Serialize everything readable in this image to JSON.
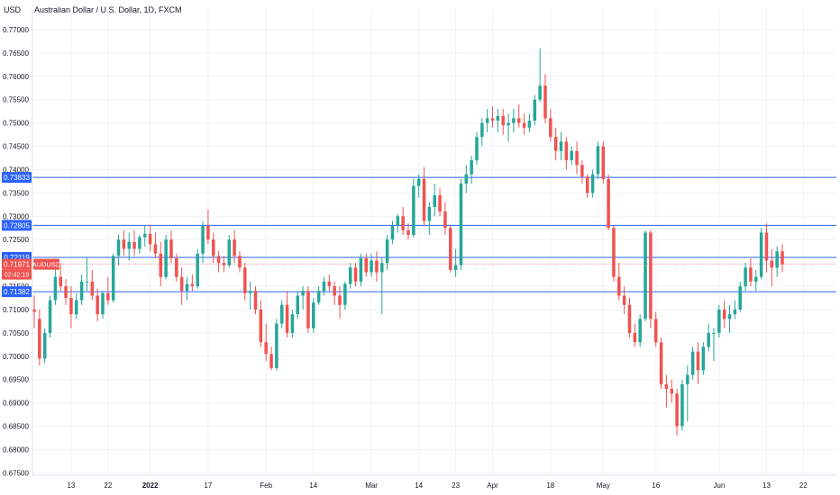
{
  "header": {
    "currency": "USD",
    "title": "Australian Dollar / U.S. Dollar, 1D, FXCM"
  },
  "colors": {
    "up": "#26a69a",
    "down": "#ef5350",
    "hline": "#2962ff",
    "price_line": "#ef5350",
    "grid": "#f0f3fa"
  },
  "chart_data": {
    "type": "candlestick",
    "symbol": "AUDUSD",
    "y_ticks": [
      "0.67500",
      "0.68000",
      "0.68500",
      "0.69000",
      "0.69500",
      "0.70000",
      "0.70500",
      "0.71000",
      "0.71500",
      "0.72000",
      "0.72500",
      "0.73000",
      "0.73500",
      "0.74000",
      "0.74500",
      "0.75000",
      "0.75500",
      "0.76000",
      "0.76500",
      "0.77000"
    ],
    "ylim": [
      0.6745,
      0.7725
    ],
    "x_ticks": [
      {
        "label": "13",
        "i": 7
      },
      {
        "label": "22",
        "i": 14
      },
      {
        "label": "2022",
        "i": 22,
        "bold": true
      },
      {
        "label": "17",
        "i": 33
      },
      {
        "label": "Feb",
        "i": 44
      },
      {
        "label": "14",
        "i": 53
      },
      {
        "label": "Mar",
        "i": 64
      },
      {
        "label": "14",
        "i": 73
      },
      {
        "label": "23",
        "i": 80
      },
      {
        "label": "Apr",
        "i": 87
      },
      {
        "label": "18",
        "i": 98
      },
      {
        "label": "May",
        "i": 108
      },
      {
        "label": "16",
        "i": 118
      },
      {
        "label": "Jun",
        "i": 130
      },
      {
        "label": "13",
        "i": 139
      },
      {
        "label": "22",
        "i": 146
      }
    ],
    "horizontal_lines": [
      {
        "value": 0.73833,
        "label": "0.73833"
      },
      {
        "value": 0.72805,
        "label": "0.72805"
      },
      {
        "value": 0.72119,
        "label": "0.72119"
      },
      {
        "value": 0.71382,
        "label": "0.71382"
      }
    ],
    "last_price": {
      "value": 0.71971,
      "label": "0.71971",
      "symbol": "AUDUSD",
      "countdown": "02:42:19"
    },
    "candles": [
      [
        0.71,
        0.713,
        0.706,
        0.7095
      ],
      [
        0.708,
        0.71,
        0.698,
        0.6995
      ],
      [
        0.6995,
        0.706,
        0.6985,
        0.705
      ],
      [
        0.705,
        0.713,
        0.704,
        0.712
      ],
      [
        0.712,
        0.7195,
        0.711,
        0.717
      ],
      [
        0.717,
        0.72,
        0.714,
        0.715
      ],
      [
        0.715,
        0.7165,
        0.711,
        0.7125
      ],
      [
        0.7125,
        0.715,
        0.706,
        0.709
      ],
      [
        0.709,
        0.7135,
        0.708,
        0.712
      ],
      [
        0.712,
        0.7175,
        0.711,
        0.716
      ],
      [
        0.716,
        0.721,
        0.714,
        0.716
      ],
      [
        0.716,
        0.7185,
        0.712,
        0.713
      ],
      [
        0.713,
        0.7145,
        0.7075,
        0.709
      ],
      [
        0.709,
        0.714,
        0.708,
        0.7135
      ],
      [
        0.7135,
        0.717,
        0.711,
        0.712
      ],
      [
        0.712,
        0.722,
        0.7115,
        0.7215
      ],
      [
        0.7215,
        0.726,
        0.7195,
        0.725
      ],
      [
        0.725,
        0.727,
        0.7215,
        0.723
      ],
      [
        0.723,
        0.7265,
        0.7205,
        0.7245
      ],
      [
        0.7245,
        0.727,
        0.7215,
        0.723
      ],
      [
        0.723,
        0.726,
        0.722,
        0.7255
      ],
      [
        0.7255,
        0.728,
        0.7235,
        0.7262
      ],
      [
        0.7262,
        0.7282,
        0.7225,
        0.724
      ],
      [
        0.724,
        0.7265,
        0.721,
        0.722
      ],
      [
        0.722,
        0.7245,
        0.715,
        0.717
      ],
      [
        0.717,
        0.726,
        0.7165,
        0.725
      ],
      [
        0.725,
        0.727,
        0.72,
        0.721
      ],
      [
        0.721,
        0.722,
        0.716,
        0.717
      ],
      [
        0.717,
        0.719,
        0.711,
        0.714
      ],
      [
        0.714,
        0.717,
        0.712,
        0.7155
      ],
      [
        0.7155,
        0.7175,
        0.714,
        0.715
      ],
      [
        0.715,
        0.723,
        0.7145,
        0.722
      ],
      [
        0.722,
        0.729,
        0.72,
        0.728
      ],
      [
        0.728,
        0.7315,
        0.724,
        0.725
      ],
      [
        0.725,
        0.7265,
        0.72,
        0.7215
      ],
      [
        0.7215,
        0.7225,
        0.718,
        0.72
      ],
      [
        0.72,
        0.7215,
        0.718,
        0.7195
      ],
      [
        0.7195,
        0.726,
        0.719,
        0.725
      ],
      [
        0.725,
        0.727,
        0.72,
        0.7215
      ],
      [
        0.7215,
        0.7225,
        0.718,
        0.719
      ],
      [
        0.719,
        0.72,
        0.712,
        0.7135
      ],
      [
        0.7135,
        0.716,
        0.71,
        0.714
      ],
      [
        0.714,
        0.715,
        0.709,
        0.71
      ],
      [
        0.71,
        0.712,
        0.702,
        0.703
      ],
      [
        0.703,
        0.707,
        0.699,
        0.7005
      ],
      [
        0.7005,
        0.702,
        0.697,
        0.6975
      ],
      [
        0.6975,
        0.708,
        0.697,
        0.707
      ],
      [
        0.707,
        0.712,
        0.706,
        0.711
      ],
      [
        0.711,
        0.714,
        0.704,
        0.705
      ],
      [
        0.705,
        0.71,
        0.704,
        0.709
      ],
      [
        0.709,
        0.714,
        0.708,
        0.713
      ],
      [
        0.713,
        0.715,
        0.71,
        0.714
      ],
      [
        0.714,
        0.715,
        0.705,
        0.706
      ],
      [
        0.706,
        0.7125,
        0.705,
        0.7115
      ],
      [
        0.7115,
        0.715,
        0.711,
        0.714
      ],
      [
        0.714,
        0.717,
        0.713,
        0.716
      ],
      [
        0.716,
        0.7175,
        0.714,
        0.715
      ],
      [
        0.715,
        0.716,
        0.711,
        0.713
      ],
      [
        0.713,
        0.715,
        0.708,
        0.711
      ],
      [
        0.711,
        0.716,
        0.71,
        0.7155
      ],
      [
        0.7155,
        0.72,
        0.7145,
        0.719
      ],
      [
        0.719,
        0.72,
        0.715,
        0.716
      ],
      [
        0.716,
        0.722,
        0.715,
        0.721
      ],
      [
        0.721,
        0.722,
        0.717,
        0.718
      ],
      [
        0.718,
        0.722,
        0.717,
        0.7205
      ],
      [
        0.7205,
        0.7225,
        0.716,
        0.718
      ],
      [
        0.718,
        0.721,
        0.709,
        0.72
      ],
      [
        0.72,
        0.726,
        0.7185,
        0.725
      ],
      [
        0.725,
        0.729,
        0.724,
        0.728
      ],
      [
        0.728,
        0.7305,
        0.7265,
        0.73
      ],
      [
        0.73,
        0.732,
        0.726,
        0.727
      ],
      [
        0.727,
        0.7285,
        0.725,
        0.726
      ],
      [
        0.726,
        0.738,
        0.7255,
        0.7365
      ],
      [
        0.7365,
        0.739,
        0.734,
        0.738
      ],
      [
        0.738,
        0.7405,
        0.728,
        0.729
      ],
      [
        0.729,
        0.733,
        0.726,
        0.732
      ],
      [
        0.732,
        0.737,
        0.73,
        0.7345
      ],
      [
        0.7345,
        0.736,
        0.73,
        0.731
      ],
      [
        0.731,
        0.733,
        0.726,
        0.7275
      ],
      [
        0.7275,
        0.728,
        0.718,
        0.7185
      ],
      [
        0.7185,
        0.723,
        0.717,
        0.7195
      ],
      [
        0.7195,
        0.738,
        0.7185,
        0.737
      ],
      [
        0.737,
        0.741,
        0.735,
        0.739
      ],
      [
        0.739,
        0.743,
        0.737,
        0.742
      ],
      [
        0.742,
        0.748,
        0.741,
        0.747
      ],
      [
        0.747,
        0.751,
        0.745,
        0.75
      ],
      [
        0.75,
        0.753,
        0.748,
        0.751
      ],
      [
        0.751,
        0.7535,
        0.749,
        0.7505
      ],
      [
        0.7505,
        0.753,
        0.748,
        0.7515
      ],
      [
        0.7515,
        0.753,
        0.7475,
        0.7495
      ],
      [
        0.7495,
        0.752,
        0.746,
        0.75
      ],
      [
        0.75,
        0.753,
        0.748,
        0.751
      ],
      [
        0.751,
        0.754,
        0.749,
        0.75
      ],
      [
        0.75,
        0.752,
        0.7475,
        0.749
      ],
      [
        0.749,
        0.752,
        0.748,
        0.7505
      ],
      [
        0.7505,
        0.756,
        0.7495,
        0.755
      ],
      [
        0.755,
        0.766,
        0.7545,
        0.758
      ],
      [
        0.758,
        0.7605,
        0.75,
        0.751
      ],
      [
        0.751,
        0.753,
        0.746,
        0.747
      ],
      [
        0.747,
        0.749,
        0.742,
        0.744
      ],
      [
        0.744,
        0.748,
        0.742,
        0.746
      ],
      [
        0.746,
        0.747,
        0.74,
        0.742
      ],
      [
        0.742,
        0.745,
        0.741,
        0.744
      ],
      [
        0.744,
        0.746,
        0.739,
        0.741
      ],
      [
        0.741,
        0.742,
        0.737,
        0.7385
      ],
      [
        0.7385,
        0.739,
        0.734,
        0.735
      ],
      [
        0.735,
        0.74,
        0.734,
        0.739
      ],
      [
        0.739,
        0.746,
        0.738,
        0.745
      ],
      [
        0.745,
        0.746,
        0.737,
        0.738
      ],
      [
        0.738,
        0.739,
        0.727,
        0.7275
      ],
      [
        0.7275,
        0.728,
        0.716,
        0.717
      ],
      [
        0.717,
        0.72,
        0.712,
        0.713
      ],
      [
        0.713,
        0.715,
        0.709,
        0.711
      ],
      [
        0.711,
        0.7125,
        0.704,
        0.705
      ],
      [
        0.705,
        0.707,
        0.702,
        0.703
      ],
      [
        0.703,
        0.709,
        0.702,
        0.708
      ],
      [
        0.708,
        0.727,
        0.7075,
        0.7265
      ],
      [
        0.7265,
        0.727,
        0.706,
        0.708
      ],
      [
        0.708,
        0.7095,
        0.702,
        0.703
      ],
      [
        0.703,
        0.704,
        0.693,
        0.694
      ],
      [
        0.694,
        0.696,
        0.689,
        0.693
      ],
      [
        0.693,
        0.695,
        0.69,
        0.692
      ],
      [
        0.692,
        0.693,
        0.683,
        0.685
      ],
      [
        0.685,
        0.695,
        0.684,
        0.694
      ],
      [
        0.694,
        0.698,
        0.686,
        0.696
      ],
      [
        0.696,
        0.702,
        0.695,
        0.701
      ],
      [
        0.701,
        0.703,
        0.694,
        0.697
      ],
      [
        0.697,
        0.703,
        0.696,
        0.702
      ],
      [
        0.702,
        0.707,
        0.701,
        0.705
      ],
      [
        0.705,
        0.706,
        0.699,
        0.705
      ],
      [
        0.705,
        0.711,
        0.704,
        0.71
      ],
      [
        0.71,
        0.712,
        0.706,
        0.708
      ],
      [
        0.708,
        0.711,
        0.705,
        0.709
      ],
      [
        0.709,
        0.712,
        0.708,
        0.71
      ],
      [
        0.71,
        0.716,
        0.7095,
        0.715
      ],
      [
        0.715,
        0.72,
        0.714,
        0.719
      ],
      [
        0.719,
        0.721,
        0.715,
        0.716
      ],
      [
        0.716,
        0.7185,
        0.714,
        0.717
      ],
      [
        0.717,
        0.7275,
        0.7165,
        0.7265
      ],
      [
        0.7265,
        0.7285,
        0.718,
        0.7205
      ],
      [
        0.7205,
        0.723,
        0.715,
        0.719
      ],
      [
        0.719,
        0.7235,
        0.717,
        0.7225
      ],
      [
        0.7225,
        0.724,
        0.718,
        0.7197
      ]
    ]
  }
}
